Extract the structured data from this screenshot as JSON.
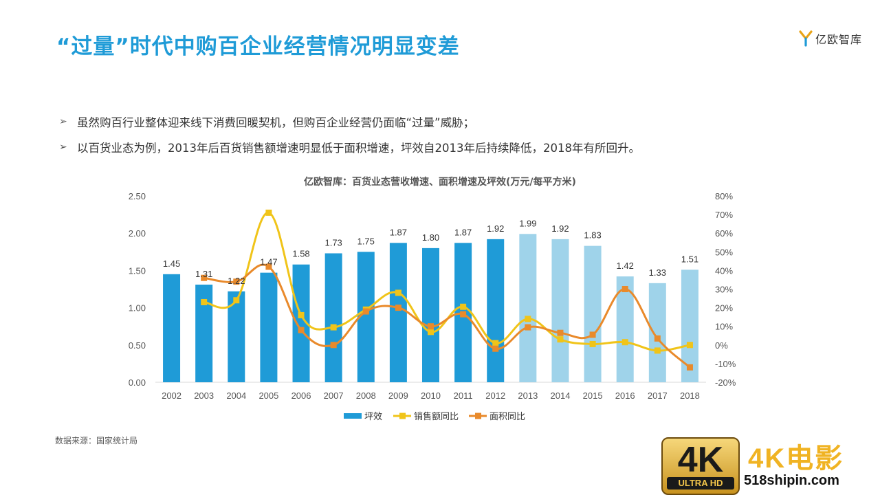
{
  "page": {
    "title": "“过量”时代中购百企业经营情况明显变差",
    "logo_text": "亿欧智库",
    "bullets": [
      "虽然购百行业整体迎来线下消费回暖契机，但购百企业经营仍面临“过量”威胁；",
      "以百货业态为例，2013年后百货销售额增速明显低于面积增速，坪效自2013年后持续降低，2018年有所回升。"
    ],
    "source": "数据来源：国家统计局",
    "watermark": {
      "badge": "4K",
      "badge_sub": "ULTRA HD",
      "title": "4K电影",
      "url": "518shipin.com"
    }
  },
  "chart_data": {
    "type": "bar+line",
    "title": "亿欧智库：百货业态营收增速、面积增速及坪效(万元/每平方米)",
    "categories": [
      "2002",
      "2003",
      "2004",
      "2005",
      "2006",
      "2007",
      "2008",
      "2009",
      "2010",
      "2011",
      "2012",
      "2013",
      "2014",
      "2015",
      "2016",
      "2017",
      "2018"
    ],
    "left_axis": {
      "min": 0,
      "max": 2.5,
      "ticks": [
        "0.00",
        "0.50",
        "1.00",
        "1.50",
        "2.00",
        "2.50"
      ]
    },
    "right_axis": {
      "min": -20,
      "max": 80,
      "ticks": [
        "-20%",
        "-10%",
        "0%",
        "10%",
        "20%",
        "30%",
        "40%",
        "50%",
        "60%",
        "70%",
        "80%"
      ]
    },
    "bars": {
      "name": "坪效",
      "values": [
        1.45,
        1.31,
        1.22,
        1.47,
        1.58,
        1.73,
        1.75,
        1.87,
        1.8,
        1.87,
        1.92,
        1.99,
        1.92,
        1.83,
        1.42,
        1.33,
        1.51
      ],
      "labels": [
        "1.45",
        "1.31",
        "1.22",
        "1.47",
        "1.58",
        "1.73",
        "1.75",
        "1.87",
        "1.80",
        "1.87",
        "1.92",
        "1.99",
        "1.92",
        "1.83",
        "1.42",
        "1.33",
        "1.51"
      ],
      "color": "#1f9bd7",
      "light_color": "#9fd3ea",
      "light_from_index": 11
    },
    "lines": [
      {
        "name": "销售额同比",
        "color": "#f0c419",
        "values": [
          null,
          23,
          24,
          71,
          16,
          9.5,
          19,
          28,
          7,
          20.5,
          1,
          14,
          3,
          0.5,
          1.5,
          -3,
          0
        ]
      },
      {
        "name": "面积同比",
        "color": "#e98a2b",
        "values": [
          null,
          36,
          34,
          42,
          8,
          0,
          18,
          20,
          10,
          16.5,
          -2,
          9.5,
          6.5,
          5.5,
          30,
          3.5,
          -12
        ]
      }
    ],
    "legend_position": "bottom"
  }
}
